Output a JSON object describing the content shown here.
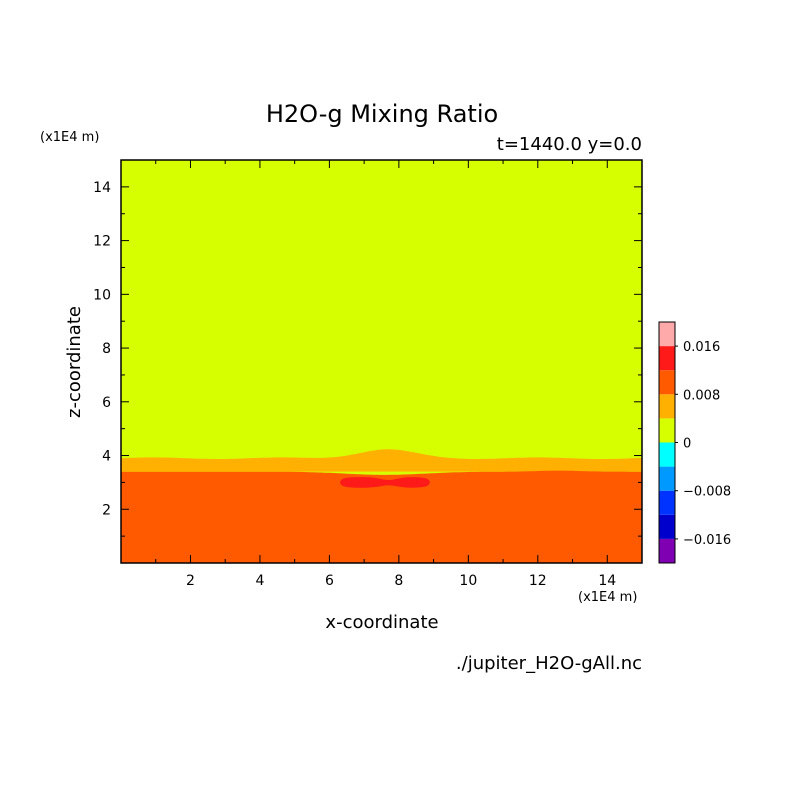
{
  "chart_data": {
    "type": "heatmap",
    "title": "H2O-g Mixing Ratio",
    "subtitle": "t=1440.0 y=0.0",
    "xlabel": "x-coordinate",
    "ylabel": "z-coordinate",
    "x_unit": "(x1E4 m)",
    "z_unit": "(x1E4 m)",
    "source_file": "./jupiter_H2O-gAll.nc",
    "xlim": [
      0,
      15
    ],
    "ylim": [
      0,
      15
    ],
    "x_ticks": [
      2,
      4,
      6,
      8,
      10,
      12,
      14
    ],
    "y_ticks": [
      2,
      4,
      6,
      8,
      10,
      12,
      14
    ],
    "grid": false,
    "colorbar": {
      "position": "right",
      "tick_labels": [
        {
          "value": 0.016,
          "label": "0.016"
        },
        {
          "value": 0.008,
          "label": "0.008"
        },
        {
          "value": 0,
          "label": "0"
        },
        {
          "value": -0.008,
          "label": "−0.008"
        },
        {
          "value": -0.016,
          "label": "−0.016"
        }
      ],
      "levels": [
        {
          "lo": -0.02,
          "hi": -0.016,
          "color": "#7f00b2"
        },
        {
          "lo": -0.016,
          "hi": -0.012,
          "color": "#0000cc"
        },
        {
          "lo": -0.012,
          "hi": -0.008,
          "color": "#0033ff"
        },
        {
          "lo": -0.008,
          "hi": -0.004,
          "color": "#0099ff"
        },
        {
          "lo": -0.004,
          "hi": 0.0,
          "color": "#00ffff"
        },
        {
          "lo": 0.0,
          "hi": 0.004,
          "color": "#d6ff00"
        },
        {
          "lo": 0.004,
          "hi": 0.008,
          "color": "#ffb000"
        },
        {
          "lo": 0.008,
          "hi": 0.012,
          "color": "#ff5a00"
        },
        {
          "lo": 0.012,
          "hi": 0.016,
          "color": "#ff1a1a"
        },
        {
          "lo": 0.016,
          "hi": 0.02,
          "color": "#ffaaaa"
        }
      ]
    },
    "field_regions": [
      {
        "name": "upper",
        "z_range": [
          3.9,
          15
        ],
        "value_range": [
          0.0,
          0.004
        ],
        "color": "#d6ff00"
      },
      {
        "name": "transition",
        "z_range": [
          3.4,
          3.9
        ],
        "value_range": [
          0.004,
          0.008
        ],
        "color": "#ffb000"
      },
      {
        "name": "lower",
        "z_range": [
          0,
          3.4
        ],
        "value_range": [
          0.008,
          0.012
        ],
        "color": "#ff5a00"
      },
      {
        "name": "core",
        "x_range": [
          6.3,
          8.9
        ],
        "z_range": [
          2.8,
          3.2
        ],
        "value_range": [
          0.012,
          0.016
        ],
        "color": "#ff1a1a"
      }
    ]
  }
}
